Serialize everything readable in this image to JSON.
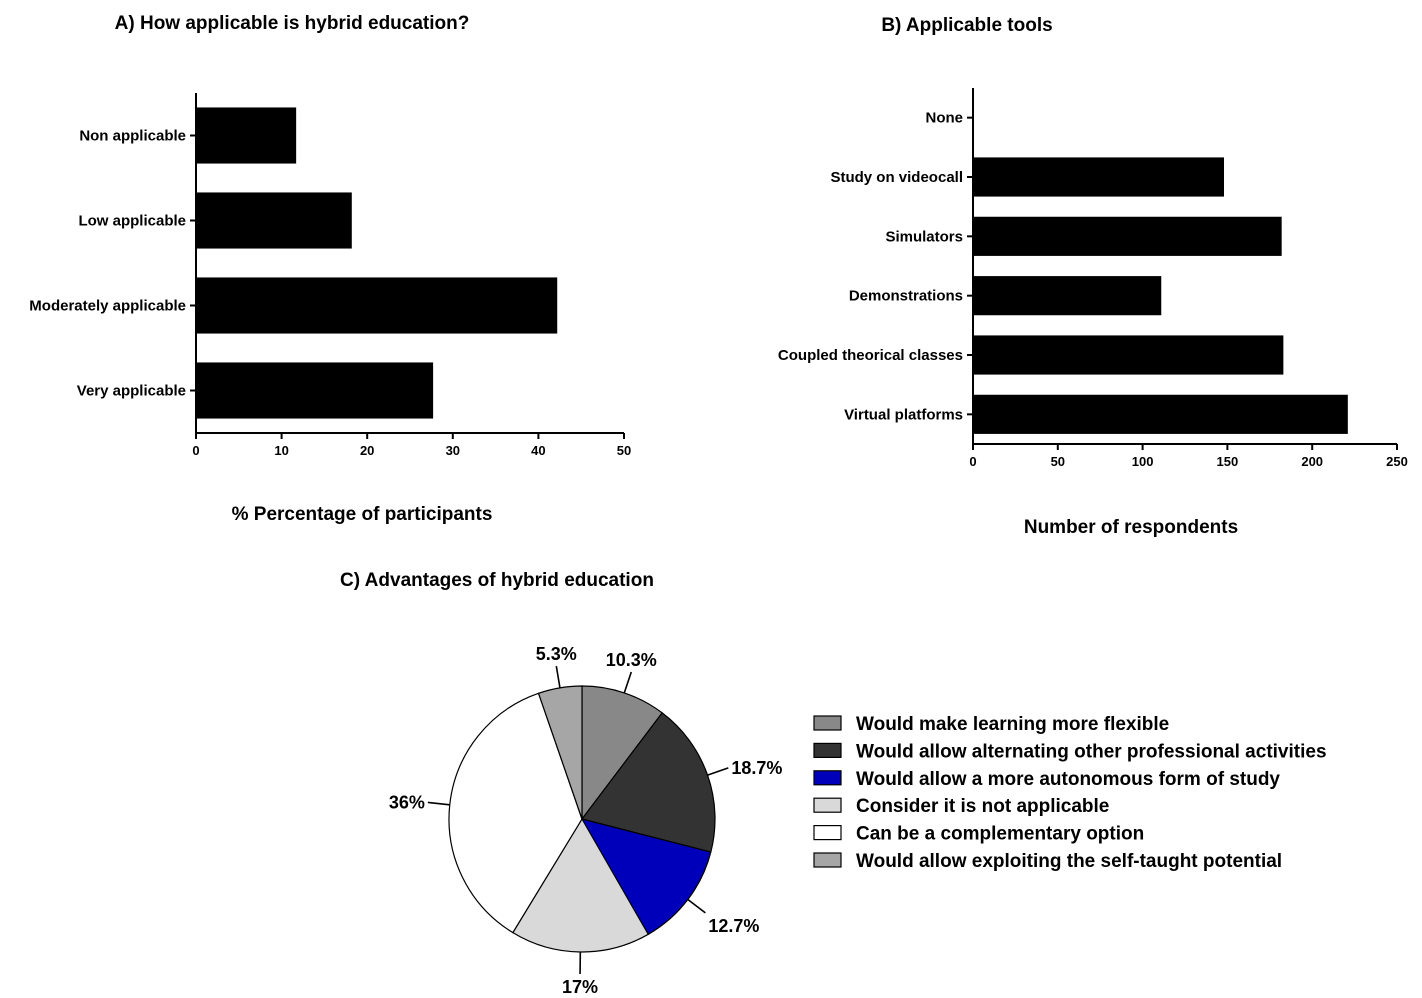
{
  "chart_data": [
    {
      "type": "bar",
      "orientation": "horizontal",
      "title": "A) How applicable is hybrid education?",
      "xlabel": "% Percentage of participants",
      "ylabel": "",
      "categories": [
        "Non applicable",
        "Low applicable",
        "Moderately applicable",
        "Very applicable"
      ],
      "values": [
        11.7,
        18.2,
        42.2,
        27.7
      ],
      "xlim": [
        0,
        50
      ],
      "xticks": [
        "0",
        "10",
        "20",
        "30",
        "40",
        "50"
      ],
      "bar_color": "#000000",
      "grid": false
    },
    {
      "type": "bar",
      "orientation": "horizontal",
      "title": "B) Applicable tools",
      "xlabel": "Number of respondents",
      "ylabel": "",
      "categories": [
        "None",
        "Study on videocall",
        "Simulators",
        "Demonstrations",
        "Coupled theorical classes",
        "Virtual platforms"
      ],
      "values": [
        0,
        148,
        182,
        111,
        183,
        221
      ],
      "xlim": [
        0,
        250
      ],
      "xticks": [
        "0",
        "50",
        "100",
        "150",
        "200",
        "250"
      ],
      "bar_color": "#000000",
      "grid": false
    },
    {
      "type": "pie",
      "title": "C) Advantages of hybrid education",
      "slices": [
        {
          "name": "Would make learning more flexible",
          "value": 10.3,
          "label": "10.3%",
          "color": "#888888"
        },
        {
          "name": "Would allow alternating other professional activities",
          "value": 18.7,
          "label": "18.7%",
          "color": "#333333"
        },
        {
          "name": "Would allow a more autonomous form of study",
          "value": 12.7,
          "label": "12.7%",
          "color": "#0000bb"
        },
        {
          "name": "Consider it is not applicable",
          "value": 17,
          "label": "17%",
          "color": "#d9d9d9"
        },
        {
          "name": "Can be a complementary option",
          "value": 36,
          "label": "36%",
          "color": "#ffffff"
        },
        {
          "name": "Would allow exploiting the self-taught potential",
          "value": 5.3,
          "label": "5.3%",
          "color": "#a6a6a6"
        }
      ],
      "legend_position": "right"
    }
  ]
}
